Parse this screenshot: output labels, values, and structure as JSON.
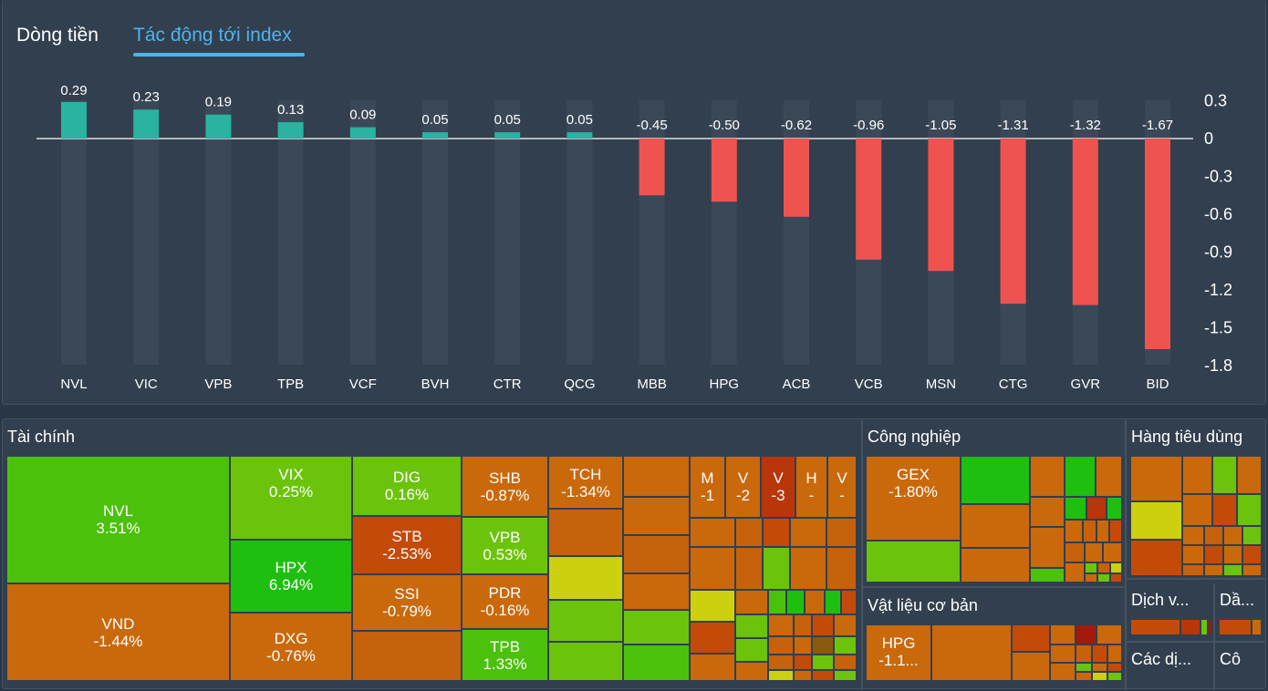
{
  "tabs": {
    "money_flow": "Dòng tiền",
    "index_impact": "Tác động tới index"
  },
  "colors": {
    "positive": "#2ab3a0",
    "negative": "#ef5350",
    "active_tab": "#4db3ec"
  },
  "chart_data": {
    "type": "bar",
    "title": "Tác động tới index",
    "categories": [
      "NVL",
      "VIC",
      "VPB",
      "TPB",
      "VCF",
      "BVH",
      "CTR",
      "QCG",
      "MBB",
      "HPG",
      "ACB",
      "VCB",
      "MSN",
      "CTG",
      "GVR",
      "BID"
    ],
    "values": [
      0.29,
      0.23,
      0.19,
      0.13,
      0.09,
      0.05,
      0.05,
      0.05,
      -0.45,
      -0.5,
      -0.62,
      -0.96,
      -1.05,
      -1.31,
      -1.32,
      -1.67
    ],
    "value_labels": [
      "0.29",
      "0.23",
      "0.19",
      "0.13",
      "0.09",
      "0.05",
      "0.05",
      "0.05",
      "-0.45",
      "-0.50",
      "-0.62",
      "-0.96",
      "-1.05",
      "-1.31",
      "-1.32",
      "-1.67"
    ],
    "y_ticks": [
      "0.3",
      "0",
      "-0.3",
      "-0.6",
      "-0.9",
      "-1.2",
      "-1.5",
      "-1.8"
    ],
    "ylim": [
      -1.8,
      0.3
    ],
    "xlabel": "",
    "ylabel": ""
  },
  "treemap": {
    "finance": {
      "title": "Tài chính",
      "tiles": [
        {
          "symbol": "NVL",
          "change": "3.51%"
        },
        {
          "symbol": "VND",
          "change": "-1.44%"
        },
        {
          "symbol": "VIX",
          "change": "0.25%"
        },
        {
          "symbol": "HPX",
          "change": "6.94%"
        },
        {
          "symbol": "DXG",
          "change": "-0.76%"
        },
        {
          "symbol": "DIG",
          "change": "0.16%"
        },
        {
          "symbol": "STB",
          "change": "-2.53%"
        },
        {
          "symbol": "SSI",
          "change": "-0.79%"
        },
        {
          "symbol": "SHB",
          "change": "-0.87%"
        },
        {
          "symbol": "VPB",
          "change": "0.53%"
        },
        {
          "symbol": "PDR",
          "change": "-0.16%"
        },
        {
          "symbol": "TPB",
          "change": "1.33%"
        },
        {
          "symbol": "TCH",
          "change": "-1.34%"
        }
      ],
      "small": [
        {
          "symbol": "M",
          "change": "-1"
        },
        {
          "symbol": "V",
          "change": "-2"
        },
        {
          "symbol": "V",
          "change": "-3"
        },
        {
          "symbol": "H",
          "change": "-"
        },
        {
          "symbol": "V",
          "change": "-"
        }
      ]
    },
    "industrial": {
      "title": "Công nghiệp",
      "tile": {
        "symbol": "GEX",
        "change": "-1.80%"
      }
    },
    "materials": {
      "title": "Vật liệu cơ bản",
      "tile": {
        "symbol": "HPG",
        "change": "-1.1..."
      }
    },
    "consumer": {
      "title": "Hàng tiêu dùng"
    },
    "services": {
      "title": "Dịch v..."
    },
    "oil": {
      "title": "Dầ..."
    },
    "utilities": {
      "title": "Các dị..."
    },
    "tech": {
      "title": "Cô"
    }
  }
}
